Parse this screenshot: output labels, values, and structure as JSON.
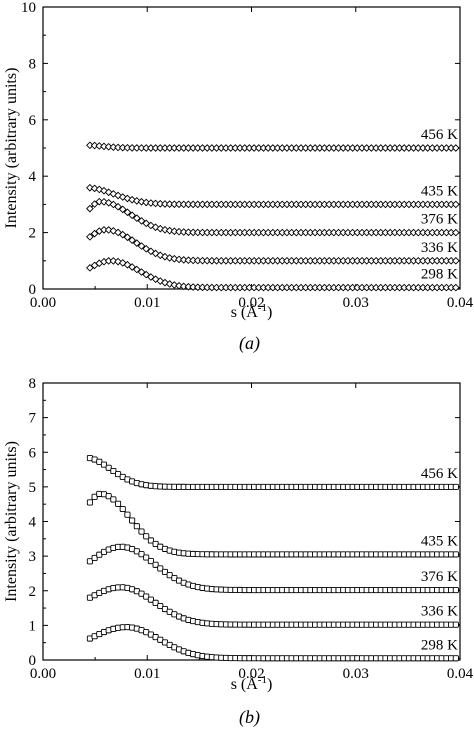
{
  "chart_data": [
    {
      "type": "scatter",
      "panel_label": "(a)",
      "xlabel": "s (Å",
      "xlabel_sup": "-1",
      "xlabel_end": ")",
      "ylabel": "Intensity (arbitrary units)",
      "xlim": [
        0,
        0.04
      ],
      "ylim": [
        0,
        10
      ],
      "xticks": [
        0.0,
        0.01,
        0.02,
        0.03,
        0.04
      ],
      "xtick_labels": [
        "0.00",
        "0.01",
        "0.02",
        "0.03",
        "0.04"
      ],
      "yticks": [
        0,
        2,
        4,
        6,
        8,
        10
      ],
      "ytick_labels": [
        "0",
        "2",
        "4",
        "6",
        "8",
        "10"
      ],
      "marker": "diamond",
      "series": [
        {
          "name": "456 K",
          "baseline": 5.0,
          "amp": 0.1,
          "peak_s": 0.004,
          "width": 0.0025,
          "start_s": 0.0045,
          "start_y": 5.12
        },
        {
          "name": "435 K",
          "baseline": 3.0,
          "amp": 0.6,
          "peak_s": 0.004,
          "width": 0.004,
          "start_s": 0.0045,
          "start_y": 3.55
        },
        {
          "name": "376 K",
          "baseline": 2.0,
          "amp": 1.1,
          "peak_s": 0.0055,
          "width": 0.004,
          "start_s": 0.0045,
          "start_y": 2.85
        },
        {
          "name": "336 K",
          "baseline": 1.0,
          "amp": 1.1,
          "peak_s": 0.006,
          "width": 0.004,
          "start_s": 0.0045,
          "start_y": 1.85
        },
        {
          "name": "298 K",
          "baseline": 0.05,
          "amp": 0.95,
          "peak_s": 0.0065,
          "width": 0.004,
          "start_s": 0.0045,
          "start_y": 0.75
        }
      ]
    },
    {
      "type": "scatter",
      "panel_label": "(b)",
      "xlabel": "s (Å",
      "xlabel_sup": "-1",
      "xlabel_end": ")",
      "ylabel": "Intensity (arbitrary units)",
      "xlim": [
        0,
        0.04
      ],
      "ylim": [
        0,
        8
      ],
      "xticks": [
        0.0,
        0.01,
        0.02,
        0.03,
        0.04
      ],
      "xtick_labels": [
        "0.00",
        "0.01",
        "0.02",
        "0.03",
        "0.04"
      ],
      "yticks": [
        0,
        1,
        2,
        3,
        4,
        5,
        6,
        7,
        8
      ],
      "ytick_labels": [
        "0",
        "1",
        "2",
        "3",
        "4",
        "5",
        "6",
        "7",
        "8"
      ],
      "marker": "square",
      "series": [
        {
          "name": "456 K",
          "baseline": 5.0,
          "amp": 0.85,
          "peak_s": 0.004,
          "width": 0.0035,
          "start_s": 0.0045,
          "start_y": 5.83
        },
        {
          "name": "435 K",
          "baseline": 3.05,
          "amp": 1.75,
          "peak_s": 0.0055,
          "width": 0.004,
          "start_s": 0.0045,
          "start_y": 4.55
        },
        {
          "name": "376 K",
          "baseline": 2.02,
          "amp": 1.25,
          "peak_s": 0.0075,
          "width": 0.0045,
          "start_s": 0.0045,
          "start_y": 2.85
        },
        {
          "name": "336 K",
          "baseline": 1.02,
          "amp": 1.08,
          "peak_s": 0.0075,
          "width": 0.0045,
          "start_s": 0.0045,
          "start_y": 1.8
        },
        {
          "name": "298 K",
          "baseline": 0.05,
          "amp": 0.9,
          "peak_s": 0.008,
          "width": 0.0045,
          "start_s": 0.0045,
          "start_y": 0.62
        }
      ]
    }
  ]
}
